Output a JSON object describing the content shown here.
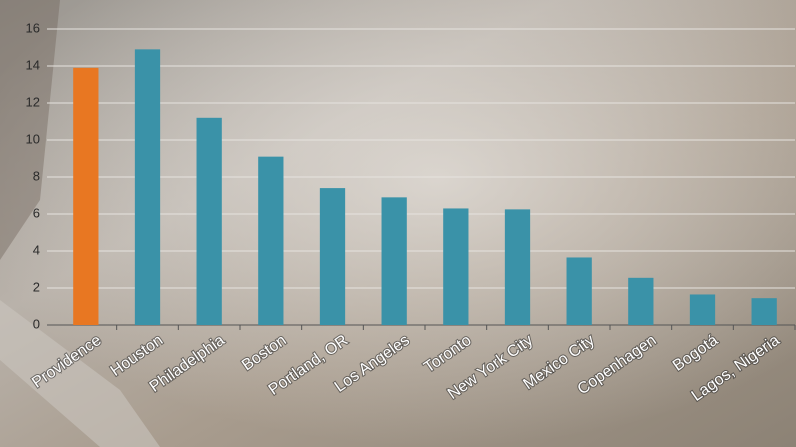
{
  "chart_data": {
    "type": "bar",
    "categories": [
      "Providence",
      "Houston",
      "Philadelphia",
      "Boston",
      "Portland, OR",
      "Los Angeles",
      "Toronto",
      "New York City",
      "Mexico City",
      "Copenhagen",
      "Bogotá",
      "Lagos, Nigeria"
    ],
    "values": [
      13.9,
      14.9,
      11.2,
      9.1,
      7.4,
      6.9,
      6.3,
      6.25,
      3.65,
      2.55,
      1.65,
      1.45
    ],
    "colors": [
      "#e87722",
      "#3a92a8",
      "#3a92a8",
      "#3a92a8",
      "#3a92a8",
      "#3a92a8",
      "#3a92a8",
      "#3a92a8",
      "#3a92a8",
      "#3a92a8",
      "#3a92a8",
      "#3a92a8"
    ],
    "ylim": [
      0,
      16
    ],
    "yticks": [
      0,
      2,
      4,
      6,
      8,
      10,
      12,
      14,
      16
    ],
    "grid": true
  }
}
